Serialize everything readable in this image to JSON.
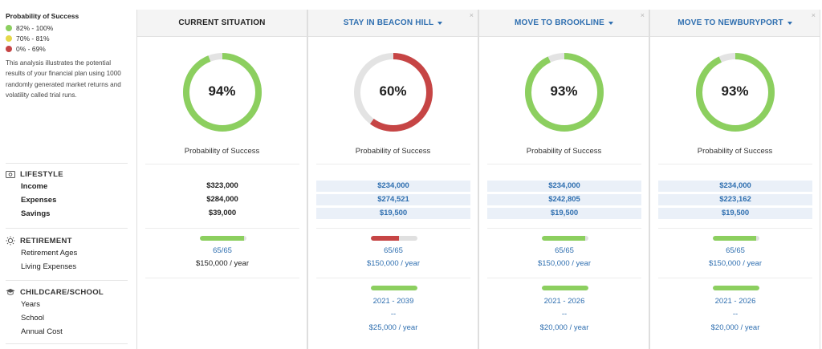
{
  "legend": {
    "title": "Probability of Success",
    "items": [
      {
        "label": "82% - 100%",
        "color": "#8ccf5f"
      },
      {
        "label": "70% - 81%",
        "color": "#e5d84a"
      },
      {
        "label": "0% - 69%",
        "color": "#c64545"
      }
    ]
  },
  "explanation": "This analysis illustrates the potential results of your financial plan using 1000 randomly generated market returns and volatility called trial runs.",
  "sections": {
    "lifestyle": {
      "title": "LIFESTYLE",
      "rows": [
        "Income",
        "Expenses",
        "Savings"
      ]
    },
    "retirement": {
      "title": "RETIREMENT",
      "rows": [
        "Retirement Ages",
        "Living Expenses"
      ]
    },
    "childcare": {
      "title": "CHILDCARE/SCHOOL",
      "rows": [
        "Years",
        "School",
        "Annual Cost"
      ]
    }
  },
  "success_label": "Probability of Success",
  "close_glyph": "×",
  "colors": {
    "green": "#8ccf5f",
    "red": "#c64545",
    "track": "#e3e3e3",
    "link": "#2f6fb0"
  },
  "scenarios": [
    {
      "title": "CURRENT SITUATION",
      "percent": 94,
      "percent_label": "94%",
      "income": "$323,000",
      "expenses": "$284,000",
      "savings": "$39,000",
      "retirement_ages": "65/65",
      "living_expenses": "$150,000 / year",
      "childcare_years": "",
      "childcare_school": "",
      "childcare_cost": ""
    },
    {
      "title": "STAY IN BEACON HILL",
      "percent": 60,
      "percent_label": "60%",
      "income": "$234,000",
      "expenses": "$274,521",
      "savings": "$19,500",
      "retirement_ages": "65/65",
      "living_expenses": "$150,000 / year",
      "childcare_years": "2021 - 2039",
      "childcare_school": "--",
      "childcare_cost": "$25,000 / year"
    },
    {
      "title": "MOVE TO BROOKLINE",
      "percent": 93,
      "percent_label": "93%",
      "income": "$234,000",
      "expenses": "$242,805",
      "savings": "$19,500",
      "retirement_ages": "65/65",
      "living_expenses": "$150,000 / year",
      "childcare_years": "2021 - 2026",
      "childcare_school": "--",
      "childcare_cost": "$20,000 / year"
    },
    {
      "title": "MOVE TO NEWBURYPORT",
      "percent": 93,
      "percent_label": "93%",
      "income": "$234,000",
      "expenses": "$223,162",
      "savings": "$19,500",
      "retirement_ages": "65/65",
      "living_expenses": "$150,000 / year",
      "childcare_years": "2021 - 2026",
      "childcare_school": "--",
      "childcare_cost": "$20,000 / year"
    }
  ]
}
